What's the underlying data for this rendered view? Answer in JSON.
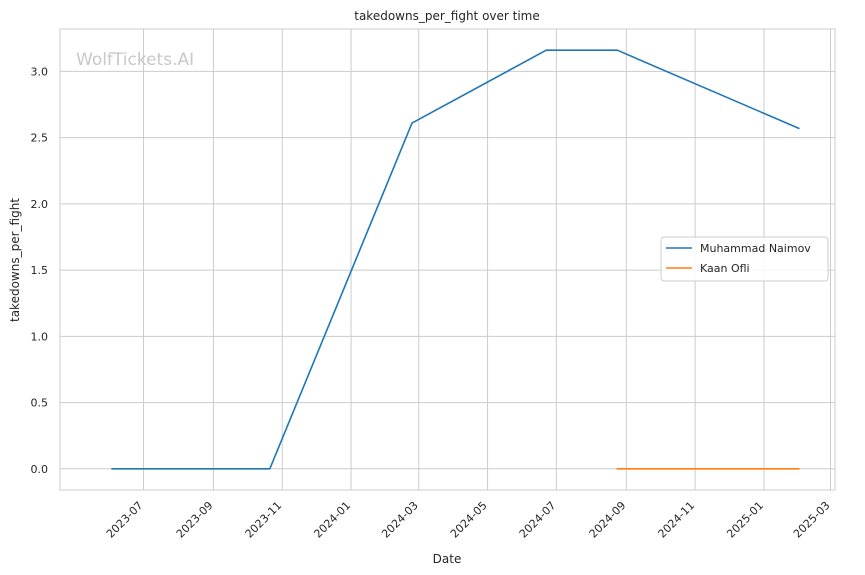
{
  "watermark": "WolfTickets.AI",
  "chart_data": {
    "type": "line",
    "title": "takedowns_per_fight over time",
    "xlabel": "Date",
    "ylabel": "takedowns_per_fight",
    "xlim": [
      "2023-04-18",
      "2025-03-05"
    ],
    "ylim": [
      -0.16,
      3.32
    ],
    "x_ticks": [
      "2023-07",
      "2023-09",
      "2023-11",
      "2024-01",
      "2024-03",
      "2024-05",
      "2024-07",
      "2024-09",
      "2024-11",
      "2025-01",
      "2025-03"
    ],
    "y_ticks": [
      0.0,
      0.5,
      1.0,
      1.5,
      2.0,
      2.5,
      3.0
    ],
    "y_tick_labels": [
      "0.0",
      "0.5",
      "1.0",
      "1.5",
      "2.0",
      "2.5",
      "3.0"
    ],
    "grid": true,
    "legend_position": "center-right",
    "series": [
      {
        "name": "Muhammad Naimov",
        "color": "#1f77b4",
        "x": [
          "2023-06-03",
          "2023-10-21",
          "2024-02-24",
          "2024-06-22",
          "2024-08-24",
          "2025-02-01"
        ],
        "y": [
          0.0,
          0.0,
          2.61,
          3.16,
          3.16,
          2.57
        ]
      },
      {
        "name": "Kaan Ofli",
        "color": "#ff7f0e",
        "x": [
          "2024-08-24",
          "2025-02-01"
        ],
        "y": [
          0.0,
          0.0
        ]
      }
    ]
  }
}
